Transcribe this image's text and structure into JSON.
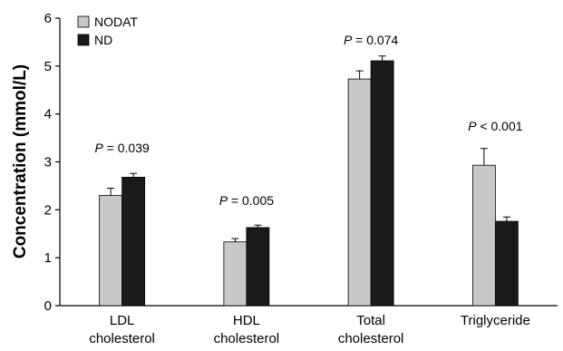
{
  "chart_data": {
    "type": "bar",
    "title": "",
    "xlabel": "",
    "ylabel": "Concentration (mmol/L)",
    "ylim": [
      0,
      6
    ],
    "yticks": [
      0,
      1,
      2,
      3,
      4,
      5,
      6
    ],
    "categories": [
      [
        "LDL",
        "cholesterol"
      ],
      [
        "HDL",
        "cholesterol"
      ],
      [
        "Total",
        "cholesterol"
      ],
      [
        "Triglyceride"
      ]
    ],
    "series": [
      {
        "name": "NODAT",
        "color": "#c8c8c8",
        "values": [
          2.3,
          1.33,
          4.73,
          2.93
        ],
        "errors": [
          0.15,
          0.07,
          0.17,
          0.35
        ]
      },
      {
        "name": "ND",
        "color": "#1a1a1a",
        "values": [
          2.68,
          1.63,
          5.11,
          1.76
        ],
        "errors": [
          0.08,
          0.05,
          0.1,
          0.09
        ]
      }
    ],
    "annotations": [
      {
        "prefix": "P",
        "text": " = 0.039",
        "category": 0,
        "y": 3.2
      },
      {
        "prefix": "P",
        "text": " = 0.005",
        "category": 1,
        "y": 2.1
      },
      {
        "prefix": "P",
        "text": " = 0.074",
        "category": 2,
        "y": 5.45
      },
      {
        "prefix": "P",
        "text": " < 0.001",
        "category": 3,
        "y": 3.65
      }
    ],
    "legend": {
      "position": "top-left"
    },
    "grid": false
  }
}
